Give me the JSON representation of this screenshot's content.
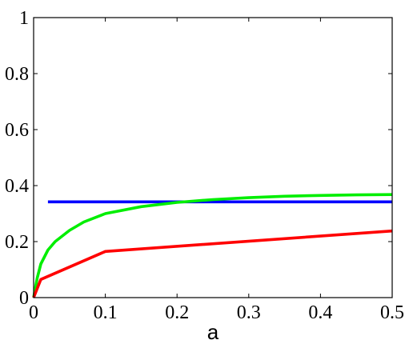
{
  "chart_data": {
    "type": "line",
    "title": "",
    "xlabel": "a",
    "ylabel": "",
    "xlim": [
      0,
      0.5
    ],
    "ylim": [
      0,
      1
    ],
    "xticks": [
      0,
      0.1,
      0.2,
      0.3,
      0.4,
      0.5
    ],
    "xtick_labels": [
      "0",
      "0.1",
      "0.2",
      "0.3",
      "0.4",
      "0.5"
    ],
    "yticks": [
      0,
      0.2,
      0.4,
      0.6,
      0.8,
      1
    ],
    "ytick_labels": [
      "0",
      "0.2",
      "0.4",
      "0.6",
      "0.8",
      "1"
    ],
    "grid": false,
    "legend": "none",
    "series": [
      {
        "color": "#0000ff",
        "x": [
          0.02,
          0.5
        ],
        "y": [
          0.342,
          0.342
        ]
      },
      {
        "color": "#00ee00",
        "x": [
          0,
          0.005,
          0.01,
          0.02,
          0.03,
          0.05,
          0.07,
          0.1,
          0.15,
          0.2,
          0.25,
          0.3,
          0.35,
          0.4,
          0.45,
          0.5
        ],
        "y": [
          0.0,
          0.07,
          0.12,
          0.17,
          0.2,
          0.24,
          0.27,
          0.3,
          0.325,
          0.34,
          0.35,
          0.357,
          0.362,
          0.365,
          0.367,
          0.368
        ]
      },
      {
        "color": "#ff0000",
        "x": [
          0,
          0.01,
          0.1,
          0.5
        ],
        "y": [
          0.0,
          0.065,
          0.165,
          0.238
        ]
      }
    ]
  }
}
